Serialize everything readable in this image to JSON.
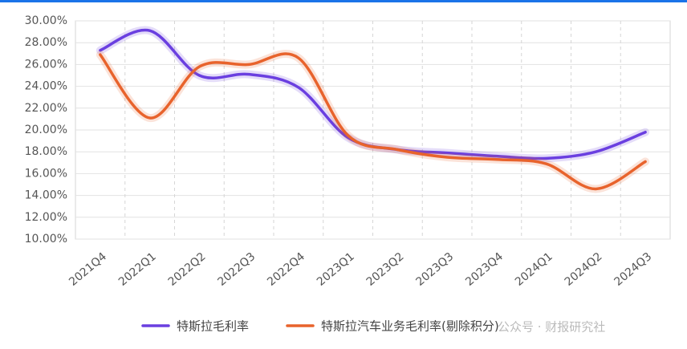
{
  "chart_data": {
    "type": "line",
    "categories": [
      "2021Q4",
      "2022Q1",
      "2022Q2",
      "2022Q3",
      "2022Q4",
      "2023Q1",
      "2023Q2",
      "2023Q3",
      "2023Q4",
      "2024Q1",
      "2024Q2",
      "2024Q3"
    ],
    "series": [
      {
        "name": "特斯拉毛利率",
        "color": "#6a3fe0",
        "values": [
          27.3,
          29.1,
          25.0,
          25.1,
          23.9,
          19.3,
          18.2,
          17.9,
          17.6,
          17.4,
          18.0,
          19.8
        ]
      },
      {
        "name": "特斯拉汽车业务毛利率(剔除积分)",
        "color": "#e8632c",
        "values": [
          26.9,
          21.1,
          25.8,
          26.0,
          26.6,
          19.5,
          18.2,
          17.5,
          17.3,
          16.9,
          14.6,
          17.1
        ]
      }
    ],
    "ylim": [
      10,
      30
    ],
    "yticks": [
      {
        "value": 10,
        "label": "10.00%"
      },
      {
        "value": 12,
        "label": "12.00%"
      },
      {
        "value": 14,
        "label": "14.00%"
      },
      {
        "value": 16,
        "label": "16.00%"
      },
      {
        "value": 18,
        "label": "18.00%"
      },
      {
        "value": 20,
        "label": "20.00%"
      },
      {
        "value": 22,
        "label": "22.00%"
      },
      {
        "value": 24,
        "label": "24.00%"
      },
      {
        "value": 26,
        "label": "26.00%"
      },
      {
        "value": 28,
        "label": "28.00%"
      },
      {
        "value": 30,
        "label": "30.00%"
      }
    ],
    "grid": true,
    "legend": "bottom",
    "watermark": "公众号 · 财报研究社"
  }
}
